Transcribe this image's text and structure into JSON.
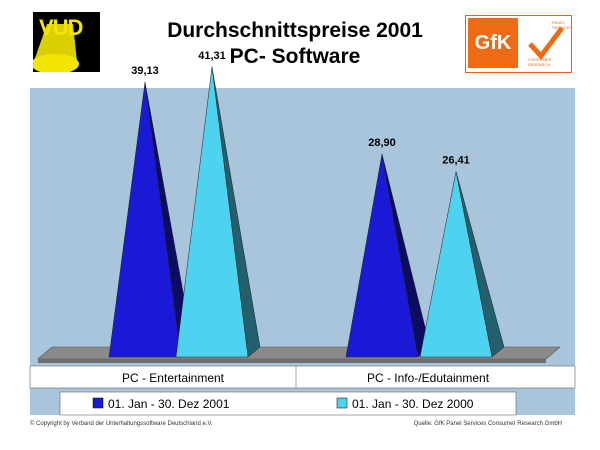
{
  "header": {
    "logo_left": "VUD",
    "title_line1": "Durchschnittspreise 2001",
    "title_line2": "PC- Software",
    "logo_right": "GfK",
    "logo_right_sub1": "PANEL SERVICES",
    "logo_right_sub2": "CONSUMER RESEARCH"
  },
  "chart_data": {
    "type": "bar",
    "title": "Durchschnittspreise 2001",
    "subtitle": "PC- Software",
    "categories": [
      "PC - Entertainment",
      "PC - Info-/Edutainment"
    ],
    "series": [
      {
        "name": "01. Jan - 30. Dez 2001",
        "values": [
          39.13,
          28.9
        ],
        "labels": [
          "39,13",
          "28,90"
        ],
        "color": "#1a1ad6"
      },
      {
        "name": "01. Jan - 30. Dez 2000",
        "values": [
          41.31,
          26.41
        ],
        "labels": [
          "41,31",
          "26,41"
        ],
        "color": "#4dd2f0"
      }
    ],
    "ylim": [
      0,
      45
    ],
    "grid": false,
    "legend": "bottom",
    "colors": {
      "plot_background": "#a9c5dc",
      "floor": "#8a8a8a"
    }
  },
  "footer": {
    "left": "© Copyright by Verband der Unterhaltungssoftware Deutschland e.V.",
    "right": "Quelle: GfK Panel Services Consumer Research GmbH"
  }
}
